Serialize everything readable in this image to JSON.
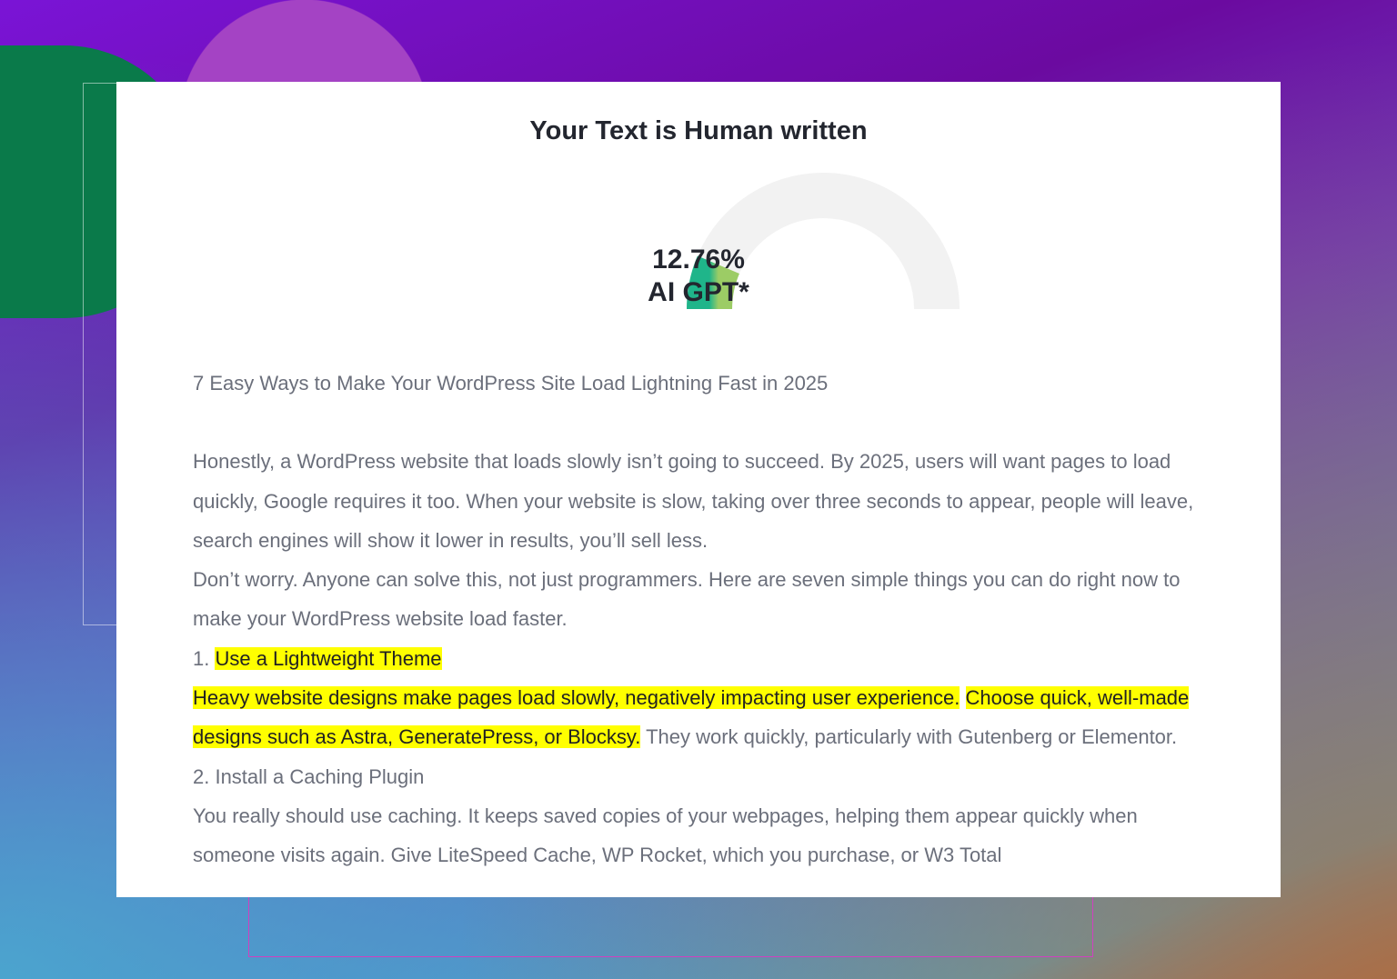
{
  "result": {
    "title": "Your Text is Human written",
    "percent": "12.76%",
    "percent_value": 12.76,
    "label": "AI GPT*",
    "gauge_colors": {
      "start": "#1fb58a",
      "end": "#9ccc65",
      "track": "#f2f2f2"
    }
  },
  "article": {
    "heading": "7 Easy Ways to Make Your WordPress Site Load Lightning Fast in 2025",
    "p1": "Honestly, a WordPress website that loads slowly isn’t going to succeed. By 2025, users will want pages to load quickly, Google requires it too. When your website is slow, taking over three seconds to appear, people will leave, search engines will show it lower in results, you’ll sell less.",
    "p2": "Don’t worry. Anyone can solve this, not just programmers. Here are seven simple things you can do right now to make your WordPress website load faster.",
    "item1_number": "1. ",
    "item1_title": "Use a Lightweight Theme",
    "item1_hl1": "Heavy website designs make pages load slowly, negatively impacting user experience.",
    "item1_hl2": "Choose quick, well-made designs such as Astra, GeneratePress, or Blocksy.",
    "item1_rest": " They work quickly, particularly with Gutenberg or Elementor.",
    "item2_title": "2. Install a Caching Plugin",
    "item2_text": "You really should use caching. It keeps saved copies of your webpages, helping them appear quickly when someone visits again. Give LiteSpeed Cache, WP Rocket, which you purchase, or W3 Total"
  },
  "highlight_color": "#ffff00"
}
